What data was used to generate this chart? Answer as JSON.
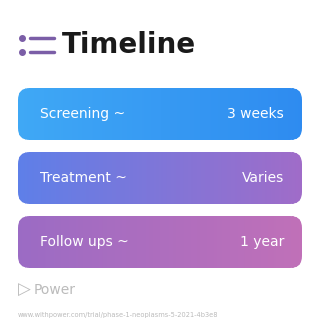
{
  "title": "Timeline",
  "title_fontsize": 20,
  "title_color": "#1a1a1a",
  "icon_color": "#7B5EA7",
  "background_color": "#ffffff",
  "rows": [
    {
      "label": "Screening ~",
      "value": "3 weeks",
      "color_left": "#3FA8F5",
      "color_right": "#2E8BF0"
    },
    {
      "label": "Treatment ~",
      "value": "Varies",
      "color_left": "#5E7FE8",
      "color_right": "#A06CC8"
    },
    {
      "label": "Follow ups ~",
      "value": "1 year",
      "color_left": "#9B6BC4",
      "color_right": "#C070B8"
    }
  ],
  "footer_logo_color": "#bbbbbb",
  "footer_text": "Power",
  "footer_url": "www.withpower.com/trial/phase-1-neoplasms-5-2021-4b3e8"
}
